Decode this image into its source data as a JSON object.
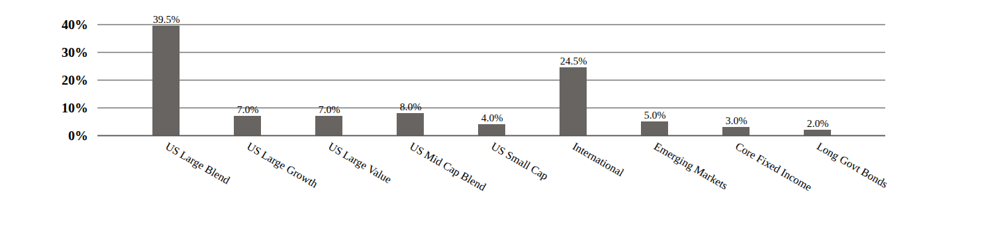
{
  "chart_data": {
    "type": "bar",
    "categories": [
      "US Large Blend",
      "US Large Growth",
      "US Large Value",
      "US Mid Cap Blend",
      "US Small Cap",
      "International",
      "Emerging Markets",
      "Core Fixed Income",
      "Long Govt Bonds"
    ],
    "values": [
      39.5,
      7.0,
      7.0,
      8.0,
      4.0,
      24.5,
      5.0,
      3.0,
      2.0
    ],
    "value_labels": [
      "39.5%",
      "7.0%",
      "7.0%",
      "8.0%",
      "4.0%",
      "24.5%",
      "5.0%",
      "3.0%",
      "2.0%"
    ],
    "color": "#686462",
    "ylim": [
      0,
      40
    ],
    "yticks": [
      {
        "value": 0,
        "label": "0%"
      },
      {
        "value": 10,
        "label": "10%"
      },
      {
        "value": 20,
        "label": "20%"
      },
      {
        "value": 30,
        "label": "30%"
      },
      {
        "value": 40,
        "label": "40%"
      }
    ],
    "grid": true,
    "data_labels": true
  }
}
